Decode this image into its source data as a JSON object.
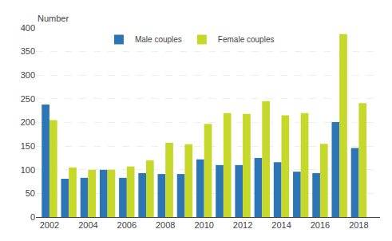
{
  "chart_data": {
    "type": "bar",
    "ylabel": "Number",
    "x": [
      2002,
      2003,
      2004,
      2005,
      2006,
      2007,
      2008,
      2009,
      2010,
      2011,
      2012,
      2013,
      2014,
      2015,
      2016,
      2017,
      2018
    ],
    "series": [
      {
        "name": "Male couples",
        "color": "#2e75b6",
        "values": [
          238,
          81,
          83,
          100,
          83,
          93,
          91,
          91,
          122,
          110,
          110,
          125,
          116,
          96,
          93,
          201,
          146
        ]
      },
      {
        "name": "Female couples",
        "color": "#c6d82a",
        "values": [
          205,
          105,
          100,
          100,
          107,
          120,
          157,
          154,
          197,
          220,
          218,
          245,
          215,
          220,
          155,
          387,
          241
        ]
      }
    ],
    "xlim": [
      2001.3,
      2019.1
    ],
    "xticks": [
      2002,
      2004,
      2006,
      2008,
      2010,
      2012,
      2014,
      2016,
      2018
    ],
    "ylim": [
      0,
      400
    ],
    "yticks": [
      0,
      50,
      100,
      150,
      200,
      250,
      300,
      350,
      400
    ],
    "grid": true,
    "legend": "upper center"
  }
}
